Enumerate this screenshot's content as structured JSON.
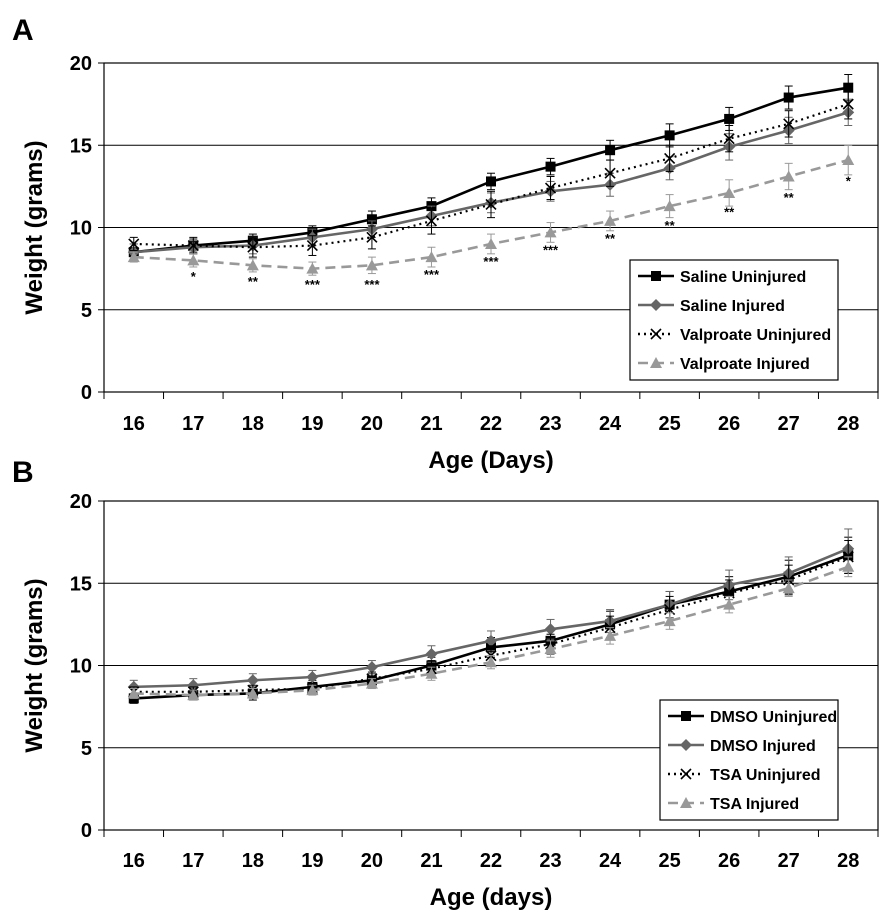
{
  "chart_data": [
    {
      "type": "line",
      "panel_label": "A",
      "xlabel": "Age (Days)",
      "ylabel": "Weight (grams)",
      "ylim": [
        0,
        20
      ],
      "yticks": [
        0,
        5,
        10,
        15,
        20
      ],
      "grid": "horizontal",
      "legend_position": "bottom-right",
      "categories": [
        "16",
        "17",
        "18",
        "19",
        "20",
        "21",
        "22",
        "23",
        "24",
        "25",
        "26",
        "27",
        "28"
      ],
      "series": [
        {
          "name": "Saline Uninjured",
          "color": "#000000",
          "dash": "solid",
          "marker": "square",
          "values": [
            8.5,
            8.9,
            9.2,
            9.7,
            10.5,
            11.3,
            12.8,
            13.7,
            14.7,
            15.6,
            16.6,
            17.9,
            18.5
          ],
          "errors": [
            0.5,
            0.4,
            0.4,
            0.4,
            0.5,
            0.5,
            0.5,
            0.5,
            0.6,
            0.7,
            0.7,
            0.7,
            0.8
          ]
        },
        {
          "name": "Saline Injured",
          "color": "#666666",
          "dash": "solid",
          "marker": "diamond",
          "values": [
            8.5,
            8.8,
            8.9,
            9.4,
            9.9,
            10.7,
            11.5,
            12.2,
            12.6,
            13.6,
            14.9,
            15.9,
            17.0
          ],
          "errors": [
            0.5,
            0.4,
            0.5,
            0.5,
            0.5,
            0.6,
            0.6,
            0.6,
            0.7,
            0.7,
            0.8,
            0.8,
            0.8
          ]
        },
        {
          "name": "Valproate Uninjured",
          "color": "#000000",
          "dash": "dotted",
          "marker": "x",
          "values": [
            9.0,
            8.9,
            8.8,
            8.9,
            9.4,
            10.4,
            11.4,
            12.4,
            13.3,
            14.2,
            15.4,
            16.3,
            17.5
          ],
          "errors": [
            0.4,
            0.5,
            0.6,
            0.6,
            0.7,
            0.8,
            0.8,
            0.7,
            0.8,
            0.8,
            0.8,
            0.8,
            0.9
          ]
        },
        {
          "name": "Valproate Injured",
          "color": "#999999",
          "dash": "dashed",
          "marker": "triangle",
          "values": [
            8.2,
            8.0,
            7.7,
            7.5,
            7.7,
            8.2,
            9.0,
            9.7,
            10.4,
            11.3,
            12.1,
            13.1,
            14.1
          ],
          "errors": [
            0.3,
            0.4,
            0.4,
            0.4,
            0.5,
            0.6,
            0.6,
            0.6,
            0.6,
            0.7,
            0.8,
            0.8,
            0.9
          ]
        }
      ],
      "annotations": [
        {
          "category": "17",
          "text": "*",
          "y": 7.0
        },
        {
          "category": "18",
          "text": "**",
          "y": 6.7
        },
        {
          "category": "19",
          "text": "***",
          "y": 6.5
        },
        {
          "category": "20",
          "text": "***",
          "y": 6.5
        },
        {
          "category": "21",
          "text": "***",
          "y": 7.1
        },
        {
          "category": "22",
          "text": "***",
          "y": 7.9
        },
        {
          "category": "23",
          "text": "***",
          "y": 8.6
        },
        {
          "category": "24",
          "text": "**",
          "y": 9.3
        },
        {
          "category": "25",
          "text": "**",
          "y": 10.1
        },
        {
          "category": "26",
          "text": "**",
          "y": 10.9
        },
        {
          "category": "27",
          "text": "**",
          "y": 11.8
        },
        {
          "category": "28",
          "text": "*",
          "y": 12.8
        }
      ]
    },
    {
      "type": "line",
      "panel_label": "B",
      "xlabel": "Age (days)",
      "ylabel": "Weight (grams)",
      "ylim": [
        0,
        20
      ],
      "yticks": [
        0,
        5,
        10,
        15,
        20
      ],
      "grid": "horizontal",
      "legend_position": "bottom-right",
      "categories": [
        "16",
        "17",
        "18",
        "19",
        "20",
        "21",
        "22",
        "23",
        "24",
        "25",
        "26",
        "27",
        "28"
      ],
      "series": [
        {
          "name": "DMSO Uninjured",
          "color": "#000000",
          "dash": "solid",
          "marker": "square",
          "values": [
            8.0,
            8.2,
            8.3,
            8.7,
            9.1,
            10.0,
            11.1,
            11.5,
            12.5,
            13.7,
            14.5,
            15.4,
            16.7
          ],
          "errors": [
            0.3,
            0.3,
            0.4,
            0.4,
            0.4,
            0.5,
            0.6,
            0.7,
            0.8,
            0.8,
            0.9,
            1.0,
            1.1
          ]
        },
        {
          "name": "DMSO Injured",
          "color": "#666666",
          "dash": "solid",
          "marker": "diamond",
          "values": [
            8.7,
            8.8,
            9.1,
            9.3,
            9.9,
            10.7,
            11.5,
            12.2,
            12.7,
            13.7,
            14.9,
            15.6,
            17.1
          ],
          "errors": [
            0.4,
            0.4,
            0.4,
            0.4,
            0.4,
            0.5,
            0.6,
            0.6,
            0.7,
            0.8,
            0.9,
            1.0,
            1.2
          ]
        },
        {
          "name": "TSA Uninjured",
          "color": "#000000",
          "dash": "dotted",
          "marker": "x",
          "values": [
            8.4,
            8.4,
            8.5,
            8.6,
            9.2,
            9.8,
            10.6,
            11.3,
            12.3,
            13.4,
            14.4,
            15.2,
            16.6
          ],
          "errors": [
            0.3,
            0.3,
            0.3,
            0.3,
            0.4,
            0.5,
            0.6,
            0.6,
            0.7,
            0.8,
            0.8,
            0.9,
            1.0
          ]
        },
        {
          "name": "TSA Injured",
          "color": "#999999",
          "dash": "dashed",
          "marker": "triangle",
          "values": [
            8.3,
            8.2,
            8.3,
            8.5,
            8.9,
            9.5,
            10.2,
            11.0,
            11.8,
            12.7,
            13.7,
            14.7,
            16.0
          ],
          "errors": [
            0.3,
            0.3,
            0.3,
            0.3,
            0.3,
            0.4,
            0.4,
            0.5,
            0.5,
            0.5,
            0.5,
            0.5,
            0.6
          ]
        }
      ],
      "annotations": []
    }
  ]
}
